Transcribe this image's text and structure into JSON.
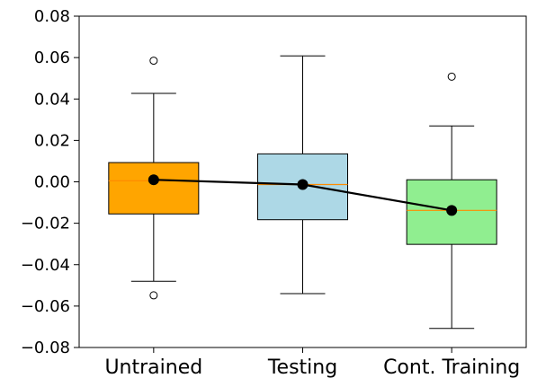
{
  "chart_data": {
    "type": "box",
    "categories": [
      "Untrained",
      "Testing",
      "Cont. Training"
    ],
    "ylim": [
      -0.08,
      0.08
    ],
    "yticks": [
      "0.08",
      "0.06",
      "0.04",
      "0.02",
      "0.00",
      "−0.02",
      "−0.04",
      "−0.06",
      "−0.08"
    ],
    "ytick_values": [
      0.08,
      0.06,
      0.04,
      0.02,
      0.0,
      -0.02,
      -0.04,
      -0.06,
      -0.08
    ],
    "boxes": [
      {
        "name": "Untrained",
        "color": "#FFA500",
        "whisker_low": -0.048,
        "q1": -0.0155,
        "median": 0.0005,
        "q3": 0.0093,
        "whisker_high": 0.0427,
        "mean": 0.001,
        "outliers": [
          0.0585,
          -0.0548
        ]
      },
      {
        "name": "Testing",
        "color": "#ADD8E6",
        "whisker_low": -0.054,
        "q1": -0.0183,
        "median": -0.0013,
        "q3": 0.0135,
        "whisker_high": 0.0608,
        "mean": -0.0013,
        "outliers": []
      },
      {
        "name": "Cont. Training",
        "color": "#90EE90",
        "whisker_low": -0.0708,
        "q1": -0.0302,
        "median": -0.0138,
        "q3": 0.001,
        "whisker_high": 0.027,
        "mean": -0.0138,
        "outliers": [
          0.0508
        ]
      }
    ],
    "mean_line_color": "#000000",
    "median_color": "#FF8C00",
    "grid": false
  }
}
